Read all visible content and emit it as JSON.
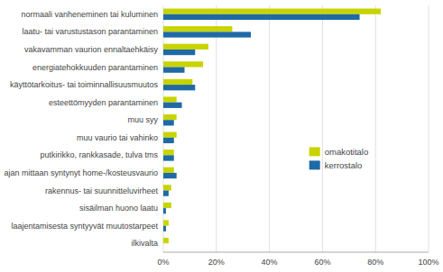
{
  "chart_data": {
    "type": "bar",
    "orientation": "horizontal",
    "categories": [
      "normaali vanheneminen tai kuluminen",
      "laatu- tai varustustason parantaminen",
      "vakavamman vaurion ennaltaehkäisy",
      "energiatehokkuuden parantaminen",
      "käyttötarkoitus- tai toiminnallisuusmuutos",
      "esteettömyyden parantaminen",
      "muu syy",
      "muu vaurio tai vahinko",
      "putkirikko, rankkasade, tulva tms",
      "ajan mittaan syntynyt home-/kosteusvaurio",
      "rakennus- tai suunnitteluvirheet",
      "sisäilman huono laatu",
      "laajentamisesta syntyyvät muutostarpeet",
      "ilkivalta"
    ],
    "series": [
      {
        "name": "omakotitalo",
        "color": "#c8d400",
        "values": [
          82,
          26,
          17,
          15,
          11,
          5,
          5,
          5,
          4,
          4,
          3,
          3,
          2,
          2
        ]
      },
      {
        "name": "kerrostalo",
        "color": "#1f6aa5",
        "values": [
          74,
          33,
          12,
          8,
          12,
          7,
          4,
          4,
          4,
          5,
          2,
          1,
          1,
          0
        ]
      }
    ],
    "xlim": [
      0,
      100
    ],
    "xticks": [
      {
        "value": 0,
        "label": "0%"
      },
      {
        "value": 20,
        "label": "20%"
      },
      {
        "value": 40,
        "label": "40%"
      },
      {
        "value": 60,
        "label": "60%"
      },
      {
        "value": 80,
        "label": "80%"
      },
      {
        "value": 100,
        "label": "100%"
      }
    ],
    "grid": true,
    "legend": "right"
  }
}
